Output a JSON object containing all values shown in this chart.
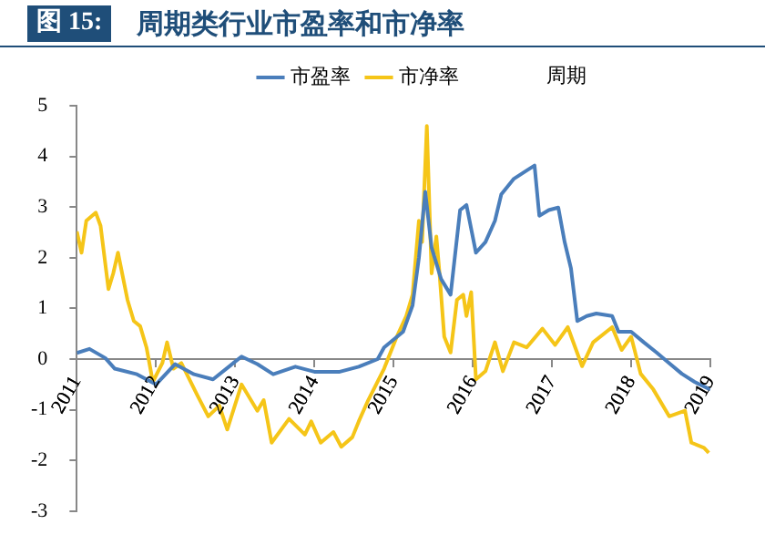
{
  "chart_data": {
    "type": "line",
    "title": "周期类行业市盈率和市净率",
    "annotations": [
      "图 15:",
      "周期"
    ],
    "xlim": [
      2011,
      2019
    ],
    "xticks": [
      2011,
      2012,
      2013,
      2014,
      2015,
      2016,
      2017,
      2018,
      2019
    ],
    "ylim": [
      -3,
      5
    ],
    "yticks": [
      -3,
      -2,
      -1,
      0,
      1,
      2,
      3,
      4,
      5
    ],
    "grid": false,
    "legend": "top",
    "marker": "none",
    "line_style": "solid",
    "series": [
      {
        "name": "市盈率",
        "color": "#4a7ebb",
        "x": [
          2011.0,
          2011.16,
          2011.36,
          2011.48,
          2011.76,
          2012.0,
          2012.24,
          2012.48,
          2012.72,
          2013.08,
          2013.28,
          2013.48,
          2013.76,
          2014.0,
          2014.32,
          2014.56,
          2014.8,
          2014.88,
          2015.12,
          2015.24,
          2015.32,
          2015.4,
          2015.48,
          2015.6,
          2015.72,
          2015.84,
          2015.92,
          2016.04,
          2016.16,
          2016.28,
          2016.36,
          2016.52,
          2016.68,
          2016.78,
          2016.84,
          2016.96,
          2017.08,
          2017.16,
          2017.24,
          2017.32,
          2017.44,
          2017.56,
          2017.76,
          2017.84,
          2018.0,
          2018.16,
          2018.32,
          2018.48,
          2018.64,
          2018.8,
          2019.0
        ],
        "values": [
          0.12,
          0.2,
          0.02,
          -0.19,
          -0.3,
          -0.5,
          -0.1,
          -0.3,
          -0.4,
          0.05,
          -0.1,
          -0.3,
          -0.15,
          -0.25,
          -0.25,
          -0.15,
          0.0,
          0.23,
          0.54,
          1.06,
          2.0,
          3.3,
          2.2,
          1.58,
          1.27,
          2.94,
          3.04,
          2.1,
          2.31,
          2.73,
          3.25,
          3.56,
          3.72,
          3.82,
          2.83,
          2.94,
          2.99,
          2.31,
          1.79,
          0.75,
          0.85,
          0.9,
          0.85,
          0.54,
          0.54,
          0.33,
          0.13,
          -0.08,
          -0.29,
          -0.45,
          -0.6
        ]
      },
      {
        "name": "市净率",
        "color": "#f5c518",
        "x": [
          2011.0,
          2011.06,
          2011.12,
          2011.24,
          2011.3,
          2011.4,
          2011.46,
          2011.52,
          2011.64,
          2011.72,
          2011.8,
          2011.88,
          2011.96,
          2012.08,
          2012.14,
          2012.22,
          2012.32,
          2012.52,
          2012.66,
          2012.8,
          2012.9,
          2013.08,
          2013.28,
          2013.36,
          2013.46,
          2013.68,
          2013.88,
          2013.96,
          2014.08,
          2014.24,
          2014.34,
          2014.48,
          2014.56,
          2014.68,
          2014.88,
          2015.04,
          2015.16,
          2015.24,
          2015.32,
          2015.36,
          2015.42,
          2015.48,
          2015.54,
          2015.58,
          2015.64,
          2015.72,
          2015.8,
          2015.88,
          2015.92,
          2015.98,
          2016.04,
          2016.16,
          2016.28,
          2016.38,
          2016.52,
          2016.68,
          2016.88,
          2017.04,
          2017.2,
          2017.38,
          2017.52,
          2017.76,
          2017.88,
          2018.0,
          2018.12,
          2018.28,
          2018.48,
          2018.68,
          2018.76,
          2018.92,
          2018.98
        ],
        "values": [
          2.52,
          2.1,
          2.73,
          2.89,
          2.63,
          1.38,
          1.69,
          2.1,
          1.17,
          0.75,
          0.65,
          0.23,
          -0.45,
          -0.08,
          0.33,
          -0.19,
          -0.08,
          -0.71,
          -1.13,
          -0.92,
          -1.39,
          -0.5,
          -1.02,
          -0.81,
          -1.65,
          -1.18,
          -1.49,
          -1.23,
          -1.65,
          -1.44,
          -1.73,
          -1.54,
          -1.23,
          -0.81,
          -0.19,
          0.44,
          0.85,
          1.27,
          2.73,
          2.31,
          4.6,
          1.69,
          2.42,
          1.69,
          0.44,
          0.13,
          1.17,
          1.27,
          0.85,
          1.32,
          -0.4,
          -0.24,
          0.33,
          -0.24,
          0.33,
          0.23,
          0.6,
          0.28,
          0.63,
          -0.14,
          0.33,
          0.63,
          0.18,
          0.44,
          -0.29,
          -0.6,
          -1.13,
          -1.02,
          -1.65,
          -1.75,
          -1.85
        ]
      }
    ]
  }
}
